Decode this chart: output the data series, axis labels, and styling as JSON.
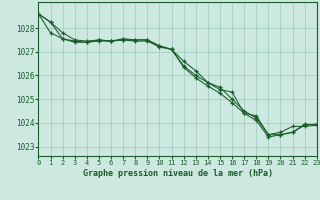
{
  "title": "Graphe pression niveau de la mer (hPa)",
  "background_color": "#cce8e0",
  "grid_color": "#99ccbb",
  "line_color": "#1a5c2a",
  "xlim": [
    0,
    23
  ],
  "ylim": [
    1022.6,
    1029.1
  ],
  "yticks": [
    1023,
    1024,
    1025,
    1026,
    1027,
    1028
  ],
  "xticks": [
    0,
    1,
    2,
    3,
    4,
    5,
    6,
    7,
    8,
    9,
    10,
    11,
    12,
    13,
    14,
    15,
    16,
    17,
    18,
    19,
    20,
    21,
    22,
    23
  ],
  "series_data": {
    "line1": [
      1028.6,
      1028.25,
      1027.55,
      1027.45,
      1027.4,
      1027.45,
      1027.45,
      1027.5,
      1027.45,
      1027.45,
      1027.2,
      1027.1,
      1026.6,
      1026.2,
      1025.7,
      1025.4,
      1025.3,
      1024.4,
      1024.3,
      1023.5,
      1023.6,
      1023.85,
      1023.85,
      1023.9
    ],
    "line2": [
      1028.6,
      1028.25,
      1027.8,
      1027.5,
      1027.45,
      1027.5,
      1027.45,
      1027.55,
      1027.5,
      1027.5,
      1027.25,
      1027.1,
      1026.35,
      1025.9,
      1025.55,
      1025.25,
      1024.85,
      1024.4,
      1024.1,
      1023.4,
      1023.5,
      1023.6,
      1023.95,
      1023.9
    ],
    "line3": [
      1028.6,
      1027.8,
      1027.55,
      1027.4,
      1027.4,
      1027.5,
      1027.45,
      1027.5,
      1027.5,
      1027.5,
      1027.25,
      1027.1,
      1026.4,
      1026.0,
      1025.7,
      1025.5,
      1025.0,
      1024.5,
      1024.2,
      1023.5,
      1023.5,
      1023.6,
      1023.9,
      1023.95
    ]
  }
}
